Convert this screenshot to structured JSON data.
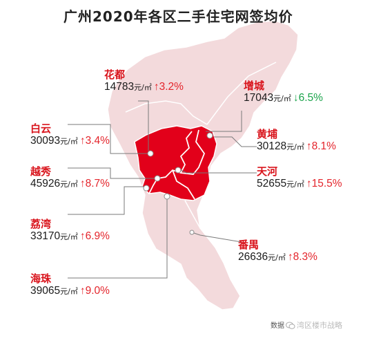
{
  "title": "广州2020年各区二手住宅网签均价",
  "unit": "元/㎡",
  "colors": {
    "map_light": "#f3dadc",
    "map_core": "#e2001a",
    "district_label": "#d9141c",
    "rise": "#e4242b",
    "fall": "#1aa34a"
  },
  "districts": [
    {
      "id": "huadu",
      "name": "花都",
      "price": "14783",
      "change": "3.2%",
      "direction": "up"
    },
    {
      "id": "zengcheng",
      "name": "增城",
      "price": "17043",
      "change": "6.5%",
      "direction": "down"
    },
    {
      "id": "baiyun",
      "name": "白云",
      "price": "30093",
      "change": "3.4%",
      "direction": "up"
    },
    {
      "id": "huangpu",
      "name": "黄埔",
      "price": "30128",
      "change": "8.1%",
      "direction": "up"
    },
    {
      "id": "yuexiu",
      "name": "越秀",
      "price": "45926",
      "change": "8.7%",
      "direction": "up"
    },
    {
      "id": "tianhe",
      "name": "天河",
      "price": "52655",
      "change": "15.5%",
      "direction": "up"
    },
    {
      "id": "liwan",
      "name": "荔湾",
      "price": "33170",
      "change": "6.9%",
      "direction": "up"
    },
    {
      "id": "panyu",
      "name": "番禺",
      "price": "26636",
      "change": "8.3%",
      "direction": "up"
    },
    {
      "id": "haizhu",
      "name": "海珠",
      "price": "39065",
      "change": "9.0%",
      "direction": "up"
    }
  ],
  "source": {
    "prefix": "数据",
    "watermark": "湾区楼市战略"
  },
  "icons": {
    "up": "arrow-up-icon",
    "down": "arrow-down-icon",
    "wechat": "wechat-icon"
  }
}
